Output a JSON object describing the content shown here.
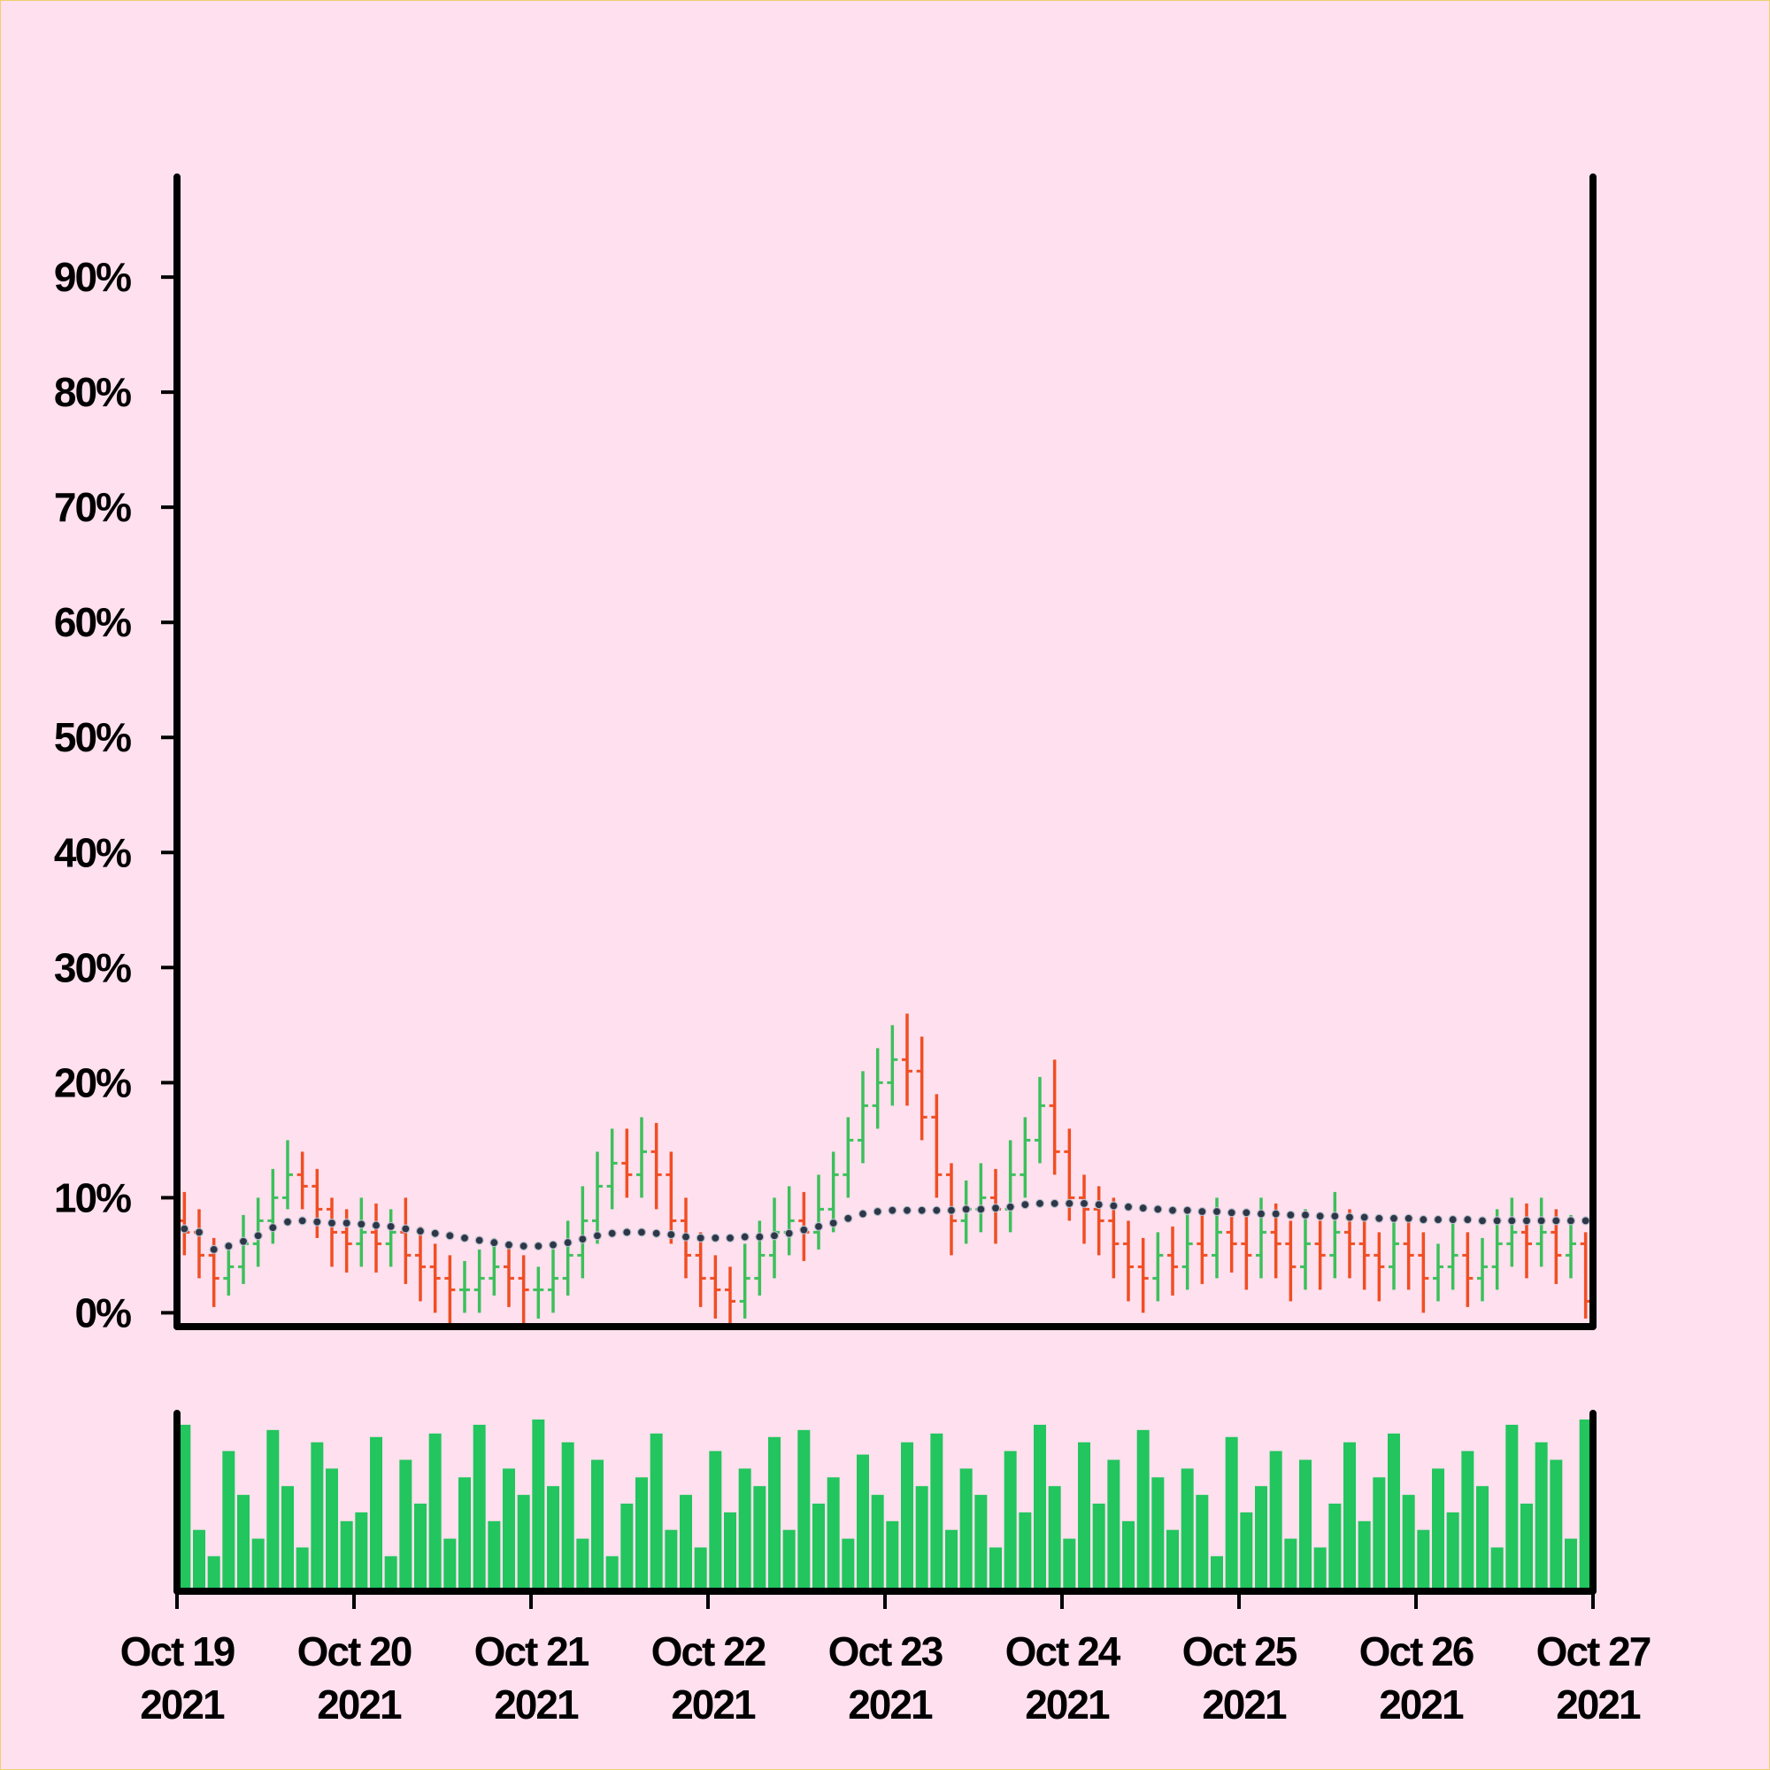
{
  "chart_data": {
    "type": "ohlc",
    "x": [
      "2021-10-19T01:00",
      "2021-10-19T03:00",
      "2021-10-19T05:00",
      "2021-10-19T07:00",
      "2021-10-19T09:00",
      "2021-10-19T11:00",
      "2021-10-19T13:00",
      "2021-10-19T15:00",
      "2021-10-19T17:00",
      "2021-10-19T19:00",
      "2021-10-19T21:00",
      "2021-10-19T23:00",
      "2021-10-20T01:00",
      "2021-10-20T03:00",
      "2021-10-20T05:00",
      "2021-10-20T07:00",
      "2021-10-20T09:00",
      "2021-10-20T11:00",
      "2021-10-20T13:00",
      "2021-10-20T15:00",
      "2021-10-20T17:00",
      "2021-10-20T19:00",
      "2021-10-20T21:00",
      "2021-10-20T23:00",
      "2021-10-21T01:00",
      "2021-10-21T03:00",
      "2021-10-21T05:00",
      "2021-10-21T07:00",
      "2021-10-21T09:00",
      "2021-10-21T11:00",
      "2021-10-21T13:00",
      "2021-10-21T15:00",
      "2021-10-21T17:00",
      "2021-10-21T19:00",
      "2021-10-21T21:00",
      "2021-10-21T23:00",
      "2021-10-22T01:00",
      "2021-10-22T03:00",
      "2021-10-22T05:00",
      "2021-10-22T07:00",
      "2021-10-22T09:00",
      "2021-10-22T11:00",
      "2021-10-22T13:00",
      "2021-10-22T15:00",
      "2021-10-22T17:00",
      "2021-10-22T19:00",
      "2021-10-22T21:00",
      "2021-10-22T23:00",
      "2021-10-23T01:00",
      "2021-10-23T03:00",
      "2021-10-23T05:00",
      "2021-10-23T07:00",
      "2021-10-23T09:00",
      "2021-10-23T11:00",
      "2021-10-23T13:00",
      "2021-10-23T15:00",
      "2021-10-23T17:00",
      "2021-10-23T19:00",
      "2021-10-23T21:00",
      "2021-10-23T23:00",
      "2021-10-24T01:00",
      "2021-10-24T03:00",
      "2021-10-24T05:00",
      "2021-10-24T07:00",
      "2021-10-24T09:00",
      "2021-10-24T11:00",
      "2021-10-24T13:00",
      "2021-10-24T15:00",
      "2021-10-24T17:00",
      "2021-10-24T19:00",
      "2021-10-24T21:00",
      "2021-10-24T23:00",
      "2021-10-25T01:00",
      "2021-10-25T03:00",
      "2021-10-25T05:00",
      "2021-10-25T07:00",
      "2021-10-25T09:00",
      "2021-10-25T11:00",
      "2021-10-25T13:00",
      "2021-10-25T15:00",
      "2021-10-25T17:00",
      "2021-10-25T19:00",
      "2021-10-25T21:00",
      "2021-10-25T23:00",
      "2021-10-26T01:00",
      "2021-10-26T03:00",
      "2021-10-26T05:00",
      "2021-10-26T07:00",
      "2021-10-26T09:00",
      "2021-10-26T11:00",
      "2021-10-26T13:00",
      "2021-10-26T15:00",
      "2021-10-26T17:00",
      "2021-10-26T19:00",
      "2021-10-26T21:00",
      "2021-10-26T23:00"
    ],
    "open": [
      8,
      7,
      5,
      3,
      4,
      6,
      8,
      10,
      12,
      11,
      9,
      7,
      6,
      7,
      6,
      7,
      5,
      4,
      3,
      2,
      2,
      3,
      4,
      3,
      2,
      2,
      3,
      5,
      8,
      11,
      13,
      12,
      14,
      12,
      8,
      5,
      3,
      2,
      1,
      3,
      5,
      7,
      8,
      7,
      9,
      12,
      15,
      18,
      20,
      22,
      21,
      17,
      12,
      8,
      9,
      10,
      9,
      12,
      15,
      18,
      14,
      10,
      9,
      8,
      6,
      4,
      3,
      5,
      4,
      6,
      5,
      7,
      6,
      5,
      7,
      6,
      4,
      6,
      5,
      7,
      6,
      5,
      4,
      6,
      5,
      3,
      4,
      5,
      3,
      4,
      6,
      7,
      6,
      7,
      5,
      6
    ],
    "high": [
      10.5,
      9,
      6.5,
      6,
      8.5,
      10,
      12.5,
      15,
      14,
      12.5,
      10,
      9,
      10,
      9.5,
      9,
      10,
      7.5,
      6,
      5,
      4.5,
      5.5,
      6.5,
      6,
      5,
      4,
      5.5,
      8,
      11,
      14,
      16,
      16,
      17,
      16.5,
      14,
      10,
      7,
      5,
      4,
      6,
      8,
      10,
      11,
      10.5,
      12,
      14,
      17,
      21,
      23,
      25,
      26,
      24,
      19,
      13,
      11.5,
      13,
      12.5,
      15,
      17,
      20.5,
      22,
      16,
      12,
      11,
      10,
      8,
      6.5,
      7,
      7.5,
      8.5,
      9,
      10,
      9,
      8.5,
      10,
      9.5,
      8,
      9,
      8,
      10.5,
      9,
      8.5,
      7,
      8,
      8.5,
      7,
      6,
      8,
      7,
      6.5,
      9,
      10,
      9.5,
      10,
      9,
      8.5,
      7
    ],
    "low": [
      5,
      3,
      0.5,
      1.5,
      2.5,
      4,
      6,
      9,
      9,
      6.5,
      4,
      3.5,
      4,
      3.5,
      4,
      2.5,
      1,
      0,
      -1,
      0,
      0,
      1.5,
      0.5,
      -1,
      -0.5,
      0,
      1.5,
      3,
      6,
      9,
      10,
      10,
      9,
      6,
      3,
      0.5,
      -0.5,
      -1,
      -0.5,
      1.5,
      3,
      5,
      4.5,
      5.5,
      7,
      10,
      13,
      16,
      18,
      18,
      15,
      10,
      5,
      6,
      7,
      6,
      7,
      10,
      13,
      12,
      8,
      6,
      5,
      3,
      1,
      0,
      1,
      1.5,
      2,
      2.5,
      3,
      3.5,
      2,
      3,
      3,
      1,
      2,
      2,
      3,
      3,
      2,
      1,
      2,
      2,
      0,
      1,
      2,
      0.5,
      1,
      2,
      4,
      3,
      4,
      2.5,
      3,
      -0.5
    ],
    "close": [
      7,
      5,
      3,
      4,
      6,
      8,
      10,
      12,
      11,
      9,
      7,
      6,
      7,
      6,
      7,
      5,
      4,
      3,
      2,
      2,
      3,
      4,
      3,
      2,
      2,
      3,
      5,
      8,
      11,
      13,
      12,
      14,
      12,
      8,
      5,
      3,
      2,
      1,
      3,
      5,
      7,
      8,
      7,
      9,
      12,
      15,
      18,
      20,
      22,
      21,
      17,
      12,
      8,
      9,
      10,
      9,
      12,
      15,
      18,
      14,
      10,
      9,
      8,
      6,
      4,
      3,
      5,
      4,
      6,
      5,
      7,
      6,
      5,
      7,
      6,
      4,
      6,
      5,
      7,
      6,
      5,
      4,
      6,
      5,
      3,
      4,
      5,
      3,
      4,
      6,
      7,
      6,
      7,
      5,
      6,
      1
    ],
    "up_color": "#3cc05c",
    "down_color": "#f04e23",
    "moving_average": {
      "color": "#2d3748",
      "values": [
        7.3,
        7.0,
        5.5,
        5.8,
        6.2,
        6.7,
        7.4,
        7.9,
        8.0,
        7.9,
        7.8,
        7.8,
        7.7,
        7.6,
        7.5,
        7.3,
        7.1,
        6.9,
        6.7,
        6.5,
        6.3,
        6.1,
        5.9,
        5.8,
        5.8,
        5.9,
        6.1,
        6.4,
        6.7,
        6.9,
        7.0,
        7.0,
        6.9,
        6.8,
        6.6,
        6.5,
        6.5,
        6.5,
        6.6,
        6.6,
        6.7,
        6.9,
        7.2,
        7.5,
        7.8,
        8.2,
        8.6,
        8.8,
        8.9,
        8.9,
        8.9,
        8.9,
        8.9,
        9.0,
        9.0,
        9.1,
        9.2,
        9.4,
        9.5,
        9.5,
        9.5,
        9.5,
        9.4,
        9.3,
        9.2,
        9.1,
        9.0,
        8.9,
        8.9,
        8.8,
        8.8,
        8.7,
        8.7,
        8.6,
        8.6,
        8.5,
        8.5,
        8.4,
        8.4,
        8.3,
        8.3,
        8.2,
        8.2,
        8.2,
        8.1,
        8.1,
        8.1,
        8.1,
        8.0,
        8.0,
        8.0,
        8.0,
        8.0,
        8.0,
        8.0,
        8.0
      ]
    },
    "volume": {
      "color": "#22c55e",
      "ylim": [
        0,
        100
      ],
      "values": [
        95,
        35,
        20,
        80,
        55,
        30,
        92,
        60,
        25,
        85,
        70,
        40,
        45,
        88,
        20,
        75,
        50,
        90,
        30,
        65,
        95,
        40,
        70,
        55,
        98,
        60,
        85,
        30,
        75,
        20,
        50,
        65,
        90,
        35,
        55,
        25,
        80,
        45,
        70,
        60,
        88,
        35,
        92,
        50,
        65,
        30,
        78,
        55,
        40,
        85,
        60,
        90,
        35,
        70,
        55,
        25,
        80,
        45,
        95,
        60,
        30,
        85,
        50,
        75,
        40,
        92,
        65,
        35,
        70,
        55,
        20,
        88,
        45,
        60,
        80,
        30,
        75,
        25,
        50,
        85,
        40,
        65,
        90,
        55,
        35,
        70,
        45,
        80,
        60,
        25,
        95,
        50,
        85,
        75,
        30,
        98
      ]
    },
    "ylim": [
      -1.2,
      98.7
    ],
    "yticks": [
      {
        "value": 0,
        "label": "0%"
      },
      {
        "value": 10,
        "label": "10%"
      },
      {
        "value": 20,
        "label": "20%"
      },
      {
        "value": 30,
        "label": "30%"
      },
      {
        "value": 40,
        "label": "40%"
      },
      {
        "value": 50,
        "label": "50%"
      },
      {
        "value": 60,
        "label": "60%"
      },
      {
        "value": 70,
        "label": "70%"
      },
      {
        "value": 80,
        "label": "80%"
      },
      {
        "value": 90,
        "label": "90%"
      }
    ],
    "xlim": [
      "2021-10-19T00:00",
      "2021-10-27T00:00"
    ],
    "xticks": [
      {
        "value": "2021-10-19T00:00",
        "label": "Oct 19 2021"
      },
      {
        "value": "2021-10-20T00:00",
        "label": "Oct 20 2021"
      },
      {
        "value": "2021-10-21T00:00",
        "label": "Oct 21 2021"
      },
      {
        "value": "2021-10-22T00:00",
        "label": "Oct 22 2021"
      },
      {
        "value": "2021-10-23T00:00",
        "label": "Oct 23 2021"
      },
      {
        "value": "2021-10-24T00:00",
        "label": "Oct 24 2021"
      },
      {
        "value": "2021-10-25T00:00",
        "label": "Oct 25 2021"
      },
      {
        "value": "2021-10-26T00:00",
        "label": "Oct 26 2021"
      },
      {
        "value": "2021-10-27T00:00",
        "label": "Oct 27 2021"
      }
    ]
  }
}
